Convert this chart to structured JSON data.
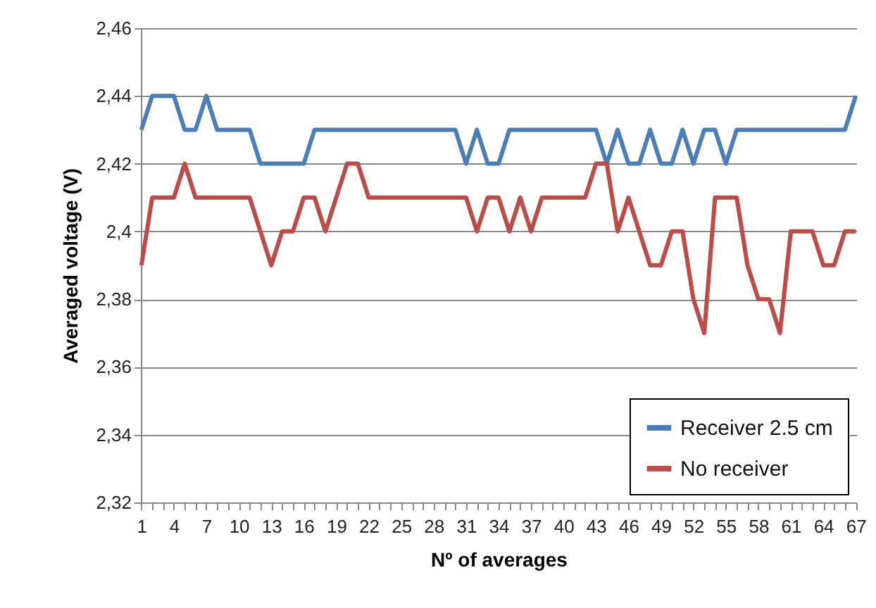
{
  "chart_data": {
    "type": "line",
    "xlabel": "Nº of averages",
    "ylabel": "Averaged voltage (V)",
    "categories": [
      "1",
      null,
      null,
      "4",
      null,
      null,
      "7",
      null,
      null,
      "10",
      null,
      null,
      "13",
      null,
      null,
      "16",
      null,
      null,
      "19",
      null,
      null,
      "22",
      null,
      null,
      "25",
      null,
      null,
      "28",
      null,
      null,
      "31",
      null,
      null,
      "34",
      null,
      null,
      "37",
      null,
      null,
      "40",
      null,
      null,
      "43",
      null,
      null,
      "46",
      null,
      null,
      "49",
      null,
      null,
      "52",
      null,
      null,
      "55",
      null,
      null,
      "58",
      null,
      null,
      "61",
      null,
      null,
      "64",
      null,
      null,
      "67"
    ],
    "series": [
      {
        "name": "Receiver 2.5 cm",
        "color": "#4a7ebb",
        "values": [
          2.43,
          2.44,
          2.44,
          2.44,
          2.43,
          2.43,
          2.44,
          2.43,
          2.43,
          2.43,
          2.43,
          2.42,
          2.42,
          2.42,
          2.42,
          2.42,
          2.43,
          2.43,
          2.43,
          2.43,
          2.43,
          2.43,
          2.43,
          2.43,
          2.43,
          2.43,
          2.43,
          2.43,
          2.43,
          2.43,
          2.42,
          2.43,
          2.42,
          2.42,
          2.43,
          2.43,
          2.43,
          2.43,
          2.43,
          2.43,
          2.43,
          2.43,
          2.43,
          2.42,
          2.43,
          2.42,
          2.42,
          2.43,
          2.42,
          2.42,
          2.43,
          2.42,
          2.43,
          2.43,
          2.42,
          2.43,
          2.43,
          2.43,
          2.43,
          2.43,
          2.43,
          2.43,
          2.43,
          2.43,
          2.43,
          2.43,
          2.44
        ]
      },
      {
        "name": "No receiver",
        "color": "#be4b48",
        "values": [
          2.39,
          2.41,
          2.41,
          2.41,
          2.42,
          2.41,
          2.41,
          2.41,
          2.41,
          2.41,
          2.41,
          2.4,
          2.39,
          2.4,
          2.4,
          2.41,
          2.41,
          2.4,
          2.41,
          2.42,
          2.42,
          2.41,
          2.41,
          2.41,
          2.41,
          2.41,
          2.41,
          2.41,
          2.41,
          2.41,
          2.41,
          2.4,
          2.41,
          2.41,
          2.4,
          2.41,
          2.4,
          2.41,
          2.41,
          2.41,
          2.41,
          2.41,
          2.42,
          2.42,
          2.4,
          2.41,
          2.4,
          2.39,
          2.39,
          2.4,
          2.4,
          2.38,
          2.37,
          2.41,
          2.41,
          2.41,
          2.39,
          2.38,
          2.38,
          2.37,
          2.4,
          2.4,
          2.4,
          2.39,
          2.39,
          2.4,
          2.4
        ]
      }
    ],
    "ylim": [
      2.32,
      2.46
    ],
    "yticks": [
      {
        "value": 2.32,
        "label": "2,32"
      },
      {
        "value": 2.34,
        "label": "2,34"
      },
      {
        "value": 2.36,
        "label": "2,36"
      },
      {
        "value": 2.38,
        "label": "2,38"
      },
      {
        "value": 2.4,
        "label": "2,4"
      },
      {
        "value": 2.42,
        "label": "2,42"
      },
      {
        "value": 2.44,
        "label": "2,44"
      },
      {
        "value": 2.46,
        "label": "2,46"
      }
    ],
    "grid": "y",
    "legend": "bottom right",
    "marker": "none",
    "line_style": "solid"
  }
}
